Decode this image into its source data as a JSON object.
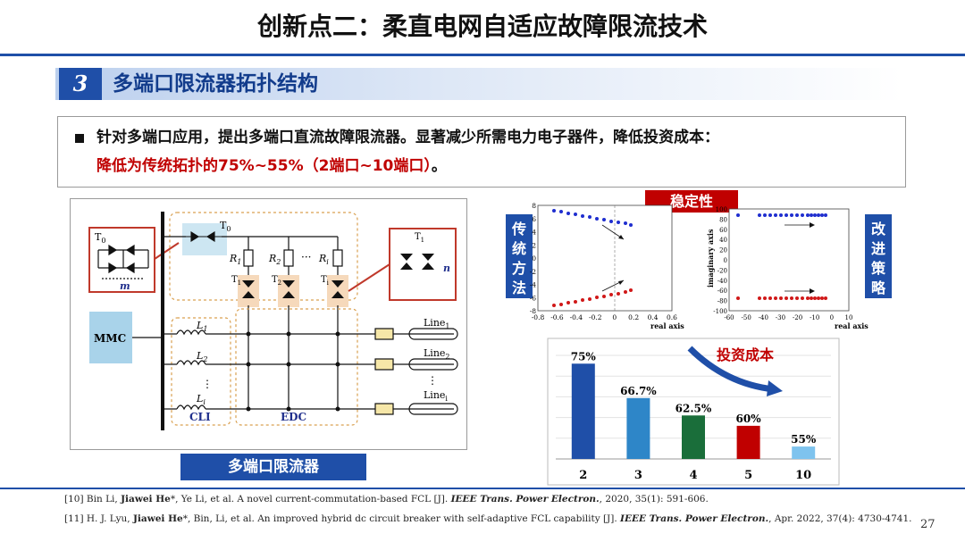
{
  "header": {
    "title": "创新点二：柔直电网自适应故障限流技术",
    "section_number": "3",
    "section_title": "多端口限流器拓扑结构"
  },
  "bullet": {
    "line1": "针对多端口应用，提出多端口直流故障限流器。显著减少所需电力电子器件，降低投资成本：",
    "line2_red": "降低为传统拓扑的75%~55%（2端口~10端口）",
    "line2_tail": "。"
  },
  "circuit": {
    "caption": "多端口限流器",
    "mmc": "MMC",
    "t0": "T",
    "t0_sub": "0",
    "ti": "T",
    "m": "m",
    "n": "n",
    "cli": "CLI",
    "edc": "EDC",
    "dots": "···",
    "resistors": [
      "R",
      "R",
      "R"
    ],
    "resistor_subs": [
      "1",
      "2",
      "i"
    ],
    "inductors": [
      "L",
      "L",
      "L"
    ],
    "inductor_subs": [
      "1",
      "2",
      "i"
    ],
    "thyristors": [
      "T",
      "T",
      "T"
    ],
    "thyristor_subs": [
      "1",
      "2",
      "i"
    ],
    "lines": [
      "Line",
      "Line",
      "Line"
    ],
    "line_subs": [
      "1",
      "2",
      "i"
    ],
    "vdots": "⋮"
  },
  "stability": {
    "label": "稳定性",
    "left_label": "传统方法",
    "right_label": "改进策略",
    "left_plot": {
      "xlabel": "real axis",
      "xticks": [
        "-0.8",
        "-0.6",
        "-0.4",
        "-0.2",
        "0",
        "0.2",
        "0.4",
        "0.6"
      ],
      "yticks": [
        "8",
        "6",
        "4",
        "2",
        "0",
        "-2",
        "-4",
        "-6",
        "-8"
      ]
    },
    "right_plot": {
      "xlabel": "real axis",
      "ylabel": "imaginary axis",
      "xticks": [
        "-60",
        "-50",
        "-40",
        "-30",
        "-20",
        "-10",
        "0",
        "10"
      ],
      "yticks": [
        "100",
        "80",
        "60",
        "40",
        "20",
        "0",
        "-20",
        "-40",
        "-60",
        "-80",
        "-100"
      ]
    },
    "colors": {
      "upper": "#1f2ecf",
      "lower": "#d01818"
    }
  },
  "chart_data": {
    "type": "bar",
    "title": "投资成本",
    "categories": [
      "2",
      "3",
      "4",
      "5",
      "10"
    ],
    "values": [
      75,
      66.7,
      62.5,
      60,
      55
    ],
    "value_labels": [
      "75%",
      "66.7%",
      "62.5%",
      "60%",
      "55%"
    ],
    "colors": [
      "#1f4fa8",
      "#2e86c8",
      "#1a6e3a",
      "#c00000",
      "#7ec3ee"
    ],
    "grid": "horizontal",
    "ylim": [
      52,
      77
    ]
  },
  "footer": {
    "ref1": {
      "pre": "[10] Bin Li, ",
      "bold": "Jiawei He",
      "mid": "*, Ye Li, et al. A novel current-commutation-based FCL [J]. ",
      "ital": "IEEE Trans. Power Electron.",
      "post": ", 2020, 35(1): 591-606."
    },
    "ref2": {
      "pre": "[11] H. J. Lyu, ",
      "bold": "Jiawei He",
      "mid": "*, Bin, Li, et al. An improved hybrid dc circuit breaker with self-adaptive FCL capability [J]. ",
      "ital": "IEEE Trans. Power Electron.",
      "post": ", Apr. 2022, 37(4): 4730-4741."
    },
    "page_number": "27"
  }
}
